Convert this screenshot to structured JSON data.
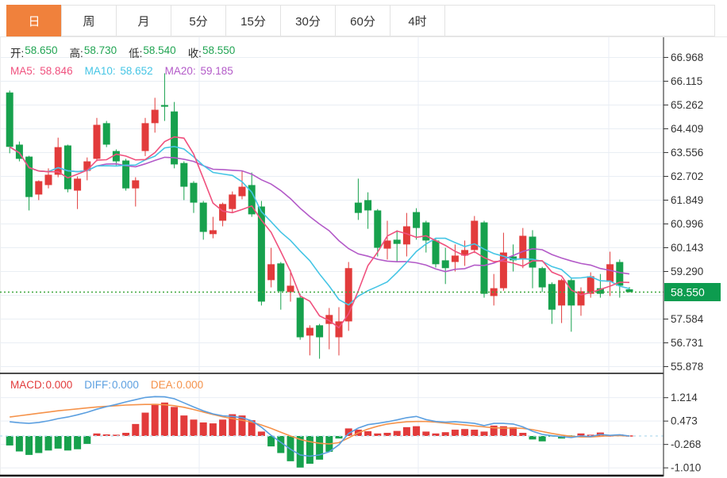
{
  "tabs": {
    "items": [
      {
        "key": "day",
        "label": "日",
        "selected": true
      },
      {
        "key": "week",
        "label": "周",
        "selected": false
      },
      {
        "key": "month",
        "label": "月",
        "selected": false
      },
      {
        "key": "5min",
        "label": "5分",
        "selected": false
      },
      {
        "key": "15min",
        "label": "15分",
        "selected": false
      },
      {
        "key": "30min",
        "label": "30分",
        "selected": false
      },
      {
        "key": "60min",
        "label": "60分",
        "selected": false
      },
      {
        "key": "4hour",
        "label": "4时",
        "selected": false
      }
    ]
  },
  "legend_ohlc": {
    "open_label": "开:",
    "open_value": "58.650",
    "high_label": "高:",
    "high_value": "58.730",
    "low_label": "低:",
    "low_value": "58.540",
    "close_label": "收:",
    "close_value": "58.550"
  },
  "legend_ma": {
    "ma5_label": "MA5:",
    "ma5_value": "58.846",
    "ma10_label": "MA10:",
    "ma10_value": "58.652",
    "ma20_label": "MA20:",
    "ma20_value": "59.185"
  },
  "legend_macd": {
    "macd_label": "MACD:",
    "macd_value": "0.000",
    "diff_label": "DIFF:",
    "diff_value": "0.000",
    "dea_label": "DEA:",
    "dea_value": "0.000"
  },
  "price_axis_badge": "58.550",
  "colors": {
    "up": "#e23b3b",
    "down": "#17a14d",
    "ma5": "#f0517e",
    "ma10": "#45c5e5",
    "ma20": "#b35ac8",
    "diff": "#5b9fe0",
    "dea": "#f5924a",
    "accent_tab": "#f0813c",
    "badge": "#0d9c4f",
    "grid": "#e9eef4",
    "zero_line": "#bfe0f0",
    "dotted_price": "#3fa73f",
    "axis_text": "#333333",
    "ohlc_value": "#21a453"
  },
  "chart_data": {
    "type": "candlestick",
    "panels": [
      {
        "name": "price",
        "type": "candlestick",
        "yticks": [
          66.968,
          66.115,
          65.262,
          64.409,
          63.556,
          62.702,
          61.849,
          60.996,
          60.143,
          59.29,
          57.584,
          56.731,
          55.878
        ],
        "hidden_tick": 58.437,
        "ylim": [
          55.45,
          67.45
        ],
        "current_price": 58.55,
        "ma_periods": [
          5,
          10,
          20
        ],
        "candles_ohlc": [
          [
            65.71,
            65.78,
            63.53,
            63.76
          ],
          [
            63.84,
            63.95,
            63.24,
            63.33
          ],
          [
            63.41,
            63.44,
            61.48,
            61.96
          ],
          [
            62.05,
            62.56,
            61.85,
            62.53
          ],
          [
            62.39,
            62.99,
            62.27,
            62.76
          ],
          [
            62.76,
            64.09,
            62.67,
            63.75
          ],
          [
            63.81,
            63.84,
            62.13,
            62.24
          ],
          [
            62.19,
            62.7,
            61.53,
            62.62
          ],
          [
            62.9,
            63.38,
            62.56,
            63.24
          ],
          [
            63.33,
            64.8,
            63.24,
            64.55
          ],
          [
            64.61,
            64.69,
            63.75,
            63.84
          ],
          [
            63.61,
            63.67,
            63.1,
            63.24
          ],
          [
            63.27,
            63.33,
            62.19,
            62.27
          ],
          [
            62.27,
            62.67,
            61.62,
            62.56
          ],
          [
            63.61,
            64.8,
            63.43,
            64.61
          ],
          [
            64.61,
            65.52,
            64.27,
            65.09
          ],
          [
            65.26,
            66.4,
            64.69,
            65.2
          ],
          [
            65.03,
            65.37,
            62.99,
            63.13
          ],
          [
            63.18,
            63.24,
            61.85,
            62.33
          ],
          [
            62.47,
            62.53,
            61.39,
            61.76
          ],
          [
            61.76,
            61.82,
            60.43,
            60.71
          ],
          [
            60.63,
            61.25,
            60.48,
            60.77
          ],
          [
            61.11,
            61.76,
            60.91,
            61.71
          ],
          [
            61.53,
            62.16,
            61.42,
            62.05
          ],
          [
            61.99,
            62.9,
            61.88,
            62.33
          ],
          [
            62.39,
            62.84,
            61.25,
            61.34
          ],
          [
            61.62,
            61.82,
            58.07,
            58.21
          ],
          [
            58.98,
            60.14,
            58.72,
            59.55
          ],
          [
            59.58,
            59.63,
            57.92,
            58.58
          ],
          [
            58.55,
            59.35,
            58.21,
            58.78
          ],
          [
            58.35,
            58.49,
            56.84,
            56.93
          ],
          [
            56.99,
            57.36,
            56.28,
            57.27
          ],
          [
            57.36,
            57.41,
            56.16,
            56.93
          ],
          [
            57.41,
            57.98,
            56.5,
            57.73
          ],
          [
            56.93,
            58.01,
            56.28,
            57.5
          ],
          [
            57.5,
            59.63,
            57.16,
            59.41
          ],
          [
            61.76,
            62.62,
            61.14,
            61.39
          ],
          [
            61.85,
            62.13,
            60.82,
            61.48
          ],
          [
            61.48,
            61.53,
            59.83,
            60.14
          ],
          [
            60.11,
            61.11,
            59.72,
            60.4
          ],
          [
            60.43,
            60.77,
            59.63,
            60.28
          ],
          [
            60.26,
            61.39,
            59.83,
            60.91
          ],
          [
            61.42,
            61.56,
            60.43,
            60.85
          ],
          [
            61.05,
            61.11,
            59.97,
            60.4
          ],
          [
            60.4,
            60.45,
            59.43,
            59.55
          ],
          [
            59.69,
            60.14,
            58.84,
            59.41
          ],
          [
            59.63,
            60.26,
            59.29,
            59.86
          ],
          [
            59.86,
            60.4,
            59.49,
            60.06
          ],
          [
            60.06,
            61.28,
            59.95,
            61.11
          ],
          [
            61.05,
            61.11,
            58.35,
            58.49
          ],
          [
            58.41,
            59.2,
            58.07,
            58.69
          ],
          [
            58.69,
            60.68,
            58.6,
            59.97
          ],
          [
            59.83,
            60.26,
            59.29,
            59.69
          ],
          [
            59.72,
            60.85,
            59.41,
            60.57
          ],
          [
            60.54,
            60.77,
            58.69,
            59.43
          ],
          [
            59.41,
            59.46,
            58.55,
            58.72
          ],
          [
            58.84,
            58.9,
            57.41,
            57.92
          ],
          [
            58.07,
            59.03,
            57.44,
            58.98
          ],
          [
            58.98,
            59.03,
            57.13,
            58.07
          ],
          [
            58.07,
            58.72,
            57.7,
            58.58
          ],
          [
            58.49,
            59.26,
            58.35,
            59.12
          ],
          [
            58.69,
            59.2,
            58.35,
            58.49
          ],
          [
            58.92,
            60.0,
            58.41,
            59.55
          ],
          [
            59.63,
            59.72,
            58.35,
            58.78
          ],
          [
            58.65,
            58.73,
            58.54,
            58.55
          ]
        ]
      },
      {
        "name": "macd",
        "type": "bar+line",
        "yticks": [
          1.214,
          0.473,
          -0.268,
          -1.01
        ],
        "ylim": [
          -1.35,
          1.55
        ],
        "zero_line": 0,
        "histogram": [
          -0.3,
          -0.49,
          -0.6,
          -0.54,
          -0.46,
          -0.4,
          -0.46,
          -0.42,
          -0.25,
          0.08,
          0.05,
          0.04,
          0.1,
          0.38,
          0.74,
          1.02,
          1.06,
          0.92,
          0.65,
          0.52,
          0.43,
          0.4,
          0.52,
          0.69,
          0.65,
          0.5,
          0.14,
          -0.33,
          -0.54,
          -0.8,
          -1.0,
          -0.88,
          -0.75,
          -0.5,
          -0.08,
          0.24,
          0.2,
          0.15,
          0.08,
          0.1,
          0.16,
          0.28,
          0.31,
          0.14,
          0.08,
          0.12,
          0.2,
          0.22,
          0.2,
          0.14,
          0.33,
          0.31,
          0.28,
          0.1,
          -0.11,
          -0.17,
          -0.02,
          -0.08,
          -0.03,
          0.08,
          0.04,
          0.11,
          0.02,
          0.05,
          0.0
        ],
        "diff": [
          0.45,
          0.42,
          0.4,
          0.43,
          0.48,
          0.55,
          0.6,
          0.67,
          0.75,
          0.85,
          0.93,
          1.0,
          1.08,
          1.15,
          1.22,
          1.25,
          1.24,
          1.18,
          1.05,
          0.92,
          0.8,
          0.7,
          0.64,
          0.62,
          0.58,
          0.48,
          0.28,
          0.02,
          -0.2,
          -0.42,
          -0.6,
          -0.64,
          -0.6,
          -0.5,
          -0.28,
          0.08,
          0.25,
          0.36,
          0.4,
          0.45,
          0.51,
          0.58,
          0.62,
          0.52,
          0.46,
          0.44,
          0.45,
          0.43,
          0.4,
          0.33,
          0.4,
          0.4,
          0.38,
          0.29,
          0.15,
          0.05,
          0.01,
          -0.02,
          -0.05,
          0.0,
          -0.02,
          0.05,
          0.02,
          0.04,
          0.0
        ],
        "dea": [
          0.6,
          0.64,
          0.68,
          0.72,
          0.76,
          0.8,
          0.83,
          0.86,
          0.89,
          0.92,
          0.94,
          0.96,
          0.98,
          0.99,
          1.0,
          1.0,
          0.99,
          0.96,
          0.91,
          0.84,
          0.76,
          0.68,
          0.61,
          0.55,
          0.5,
          0.44,
          0.35,
          0.24,
          0.12,
          0.0,
          -0.11,
          -0.18,
          -0.23,
          -0.25,
          -0.21,
          -0.06,
          0.1,
          0.22,
          0.31,
          0.38,
          0.42,
          0.45,
          0.46,
          0.46,
          0.44,
          0.41,
          0.38,
          0.35,
          0.32,
          0.29,
          0.26,
          0.25,
          0.25,
          0.24,
          0.2,
          0.14,
          0.08,
          0.03,
          -0.01,
          -0.03,
          -0.03,
          -0.01,
          0.01,
          0.01,
          0.0
        ]
      }
    ]
  }
}
